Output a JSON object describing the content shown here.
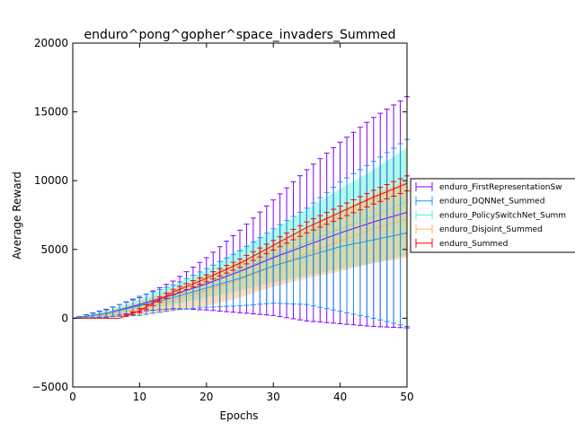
{
  "chart_data": {
    "type": "line",
    "title": "enduro^pong^gopher^space_invaders_Summed",
    "xlabel": "Epochs",
    "ylabel": "Average Reward",
    "xlim": [
      0,
      50
    ],
    "ylim": [
      -5000,
      20000
    ],
    "xticks": [
      0,
      10,
      20,
      30,
      40,
      50
    ],
    "yticks": [
      -5000,
      0,
      5000,
      10000,
      15000,
      20000
    ],
    "legend_position": "right, outside plot",
    "grid": false,
    "series": [
      {
        "name": "enduro_FirstRepresentationSwitch_Summed",
        "display_label": "enduro_FirstRepresentationSw",
        "color": "#8000ff",
        "error_style": "bars",
        "x": [
          0,
          5,
          10,
          15,
          20,
          25,
          30,
          35,
          40,
          45,
          50
        ],
        "mean": [
          0,
          350,
          1000,
          1700,
          2500,
          3400,
          4400,
          5300,
          6200,
          7000,
          7700
        ],
        "err": [
          0,
          300,
          500,
          1000,
          1900,
          3000,
          4200,
          5500,
          6600,
          7600,
          8400
        ]
      },
      {
        "name": "enduro_DQNNet_Summed",
        "display_label": "enduro_DQNNet_Summed",
        "color": "#1996f3",
        "error_style": "bars",
        "x": [
          0,
          5,
          10,
          15,
          20,
          25,
          30,
          35,
          40,
          45,
          50
        ],
        "mean": [
          0,
          350,
          900,
          1500,
          2200,
          2900,
          3800,
          4500,
          5200,
          5700,
          6200
        ],
        "err": [
          0,
          250,
          700,
          900,
          1400,
          2000,
          2700,
          3500,
          4700,
          5700,
          6800
        ]
      },
      {
        "name": "enduro_PolicySwitchNet_Summed",
        "display_label": "enduro_PolicySwitchNet_Summ",
        "color": "#4df3ce",
        "error_style": "band",
        "x": [
          0,
          5,
          10,
          15,
          20,
          25,
          30,
          35,
          40,
          45,
          50
        ],
        "mean": [
          0,
          300,
          950,
          1700,
          2500,
          3500,
          4500,
          5500,
          6500,
          7400,
          8500
        ],
        "err": [
          0,
          200,
          400,
          700,
          1000,
          1500,
          1900,
          2400,
          2900,
          3400,
          3900
        ]
      },
      {
        "name": "enduro_Disjoint_Summed",
        "display_label": "enduro_Disjoint_Summed",
        "color": "#ffb360",
        "error_style": "band",
        "x": [
          0,
          5,
          10,
          15,
          20,
          25,
          30,
          35,
          40,
          45,
          50
        ],
        "mean": [
          0,
          250,
          700,
          1300,
          2000,
          2800,
          3800,
          4700,
          5600,
          6500,
          7200
        ],
        "err": [
          0,
          200,
          500,
          800,
          1100,
          1300,
          1500,
          1800,
          2200,
          2500,
          2800
        ]
      },
      {
        "name": "enduro_Summed",
        "display_label": "enduro_Summed",
        "color": "#ff0000",
        "error_style": "bars",
        "x": [
          0,
          5,
          7,
          10,
          15,
          20,
          25,
          30,
          35,
          40,
          45,
          50
        ],
        "mean": [
          0,
          0,
          0,
          550,
          1900,
          2900,
          4000,
          5300,
          6600,
          7700,
          8800,
          9800
        ],
        "err": [
          0,
          0,
          0,
          150,
          200,
          250,
          300,
          350,
          400,
          450,
          500,
          550
        ]
      }
    ]
  }
}
